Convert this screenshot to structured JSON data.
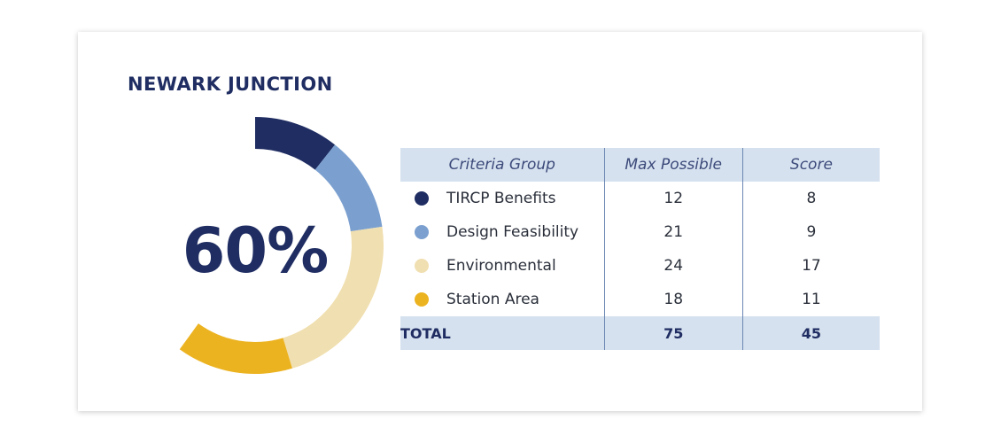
{
  "title": "NEWARK JUNCTION",
  "percent_label": "60%",
  "table": {
    "headers": [
      "Criteria Group",
      "Max Possible",
      "Score"
    ],
    "rows": [
      {
        "group": "TIRCP Benefits",
        "max": "12",
        "score": "8",
        "color": "#1f2d62"
      },
      {
        "group": "Design Feasibility",
        "max": "21",
        "score": "9",
        "color": "#7ba0d0"
      },
      {
        "group": "Environmental",
        "max": "24",
        "score": "17",
        "color": "#f0dfb0"
      },
      {
        "group": "Station Area",
        "max": "18",
        "score": "11",
        "color": "#ecb321"
      }
    ],
    "total": {
      "label": "TOTAL",
      "max": "75",
      "score": "45"
    }
  },
  "chart_data": {
    "type": "pie",
    "style": "donut",
    "categories": [
      "TIRCP Benefits",
      "Design Feasibility",
      "Environmental",
      "Station Area"
    ],
    "values": [
      8,
      9,
      17,
      11
    ],
    "total_possible": 75,
    "center_label": "60%",
    "colors": [
      "#1f2d62",
      "#7ba0d0",
      "#f0dfb0",
      "#ecb321"
    ]
  }
}
